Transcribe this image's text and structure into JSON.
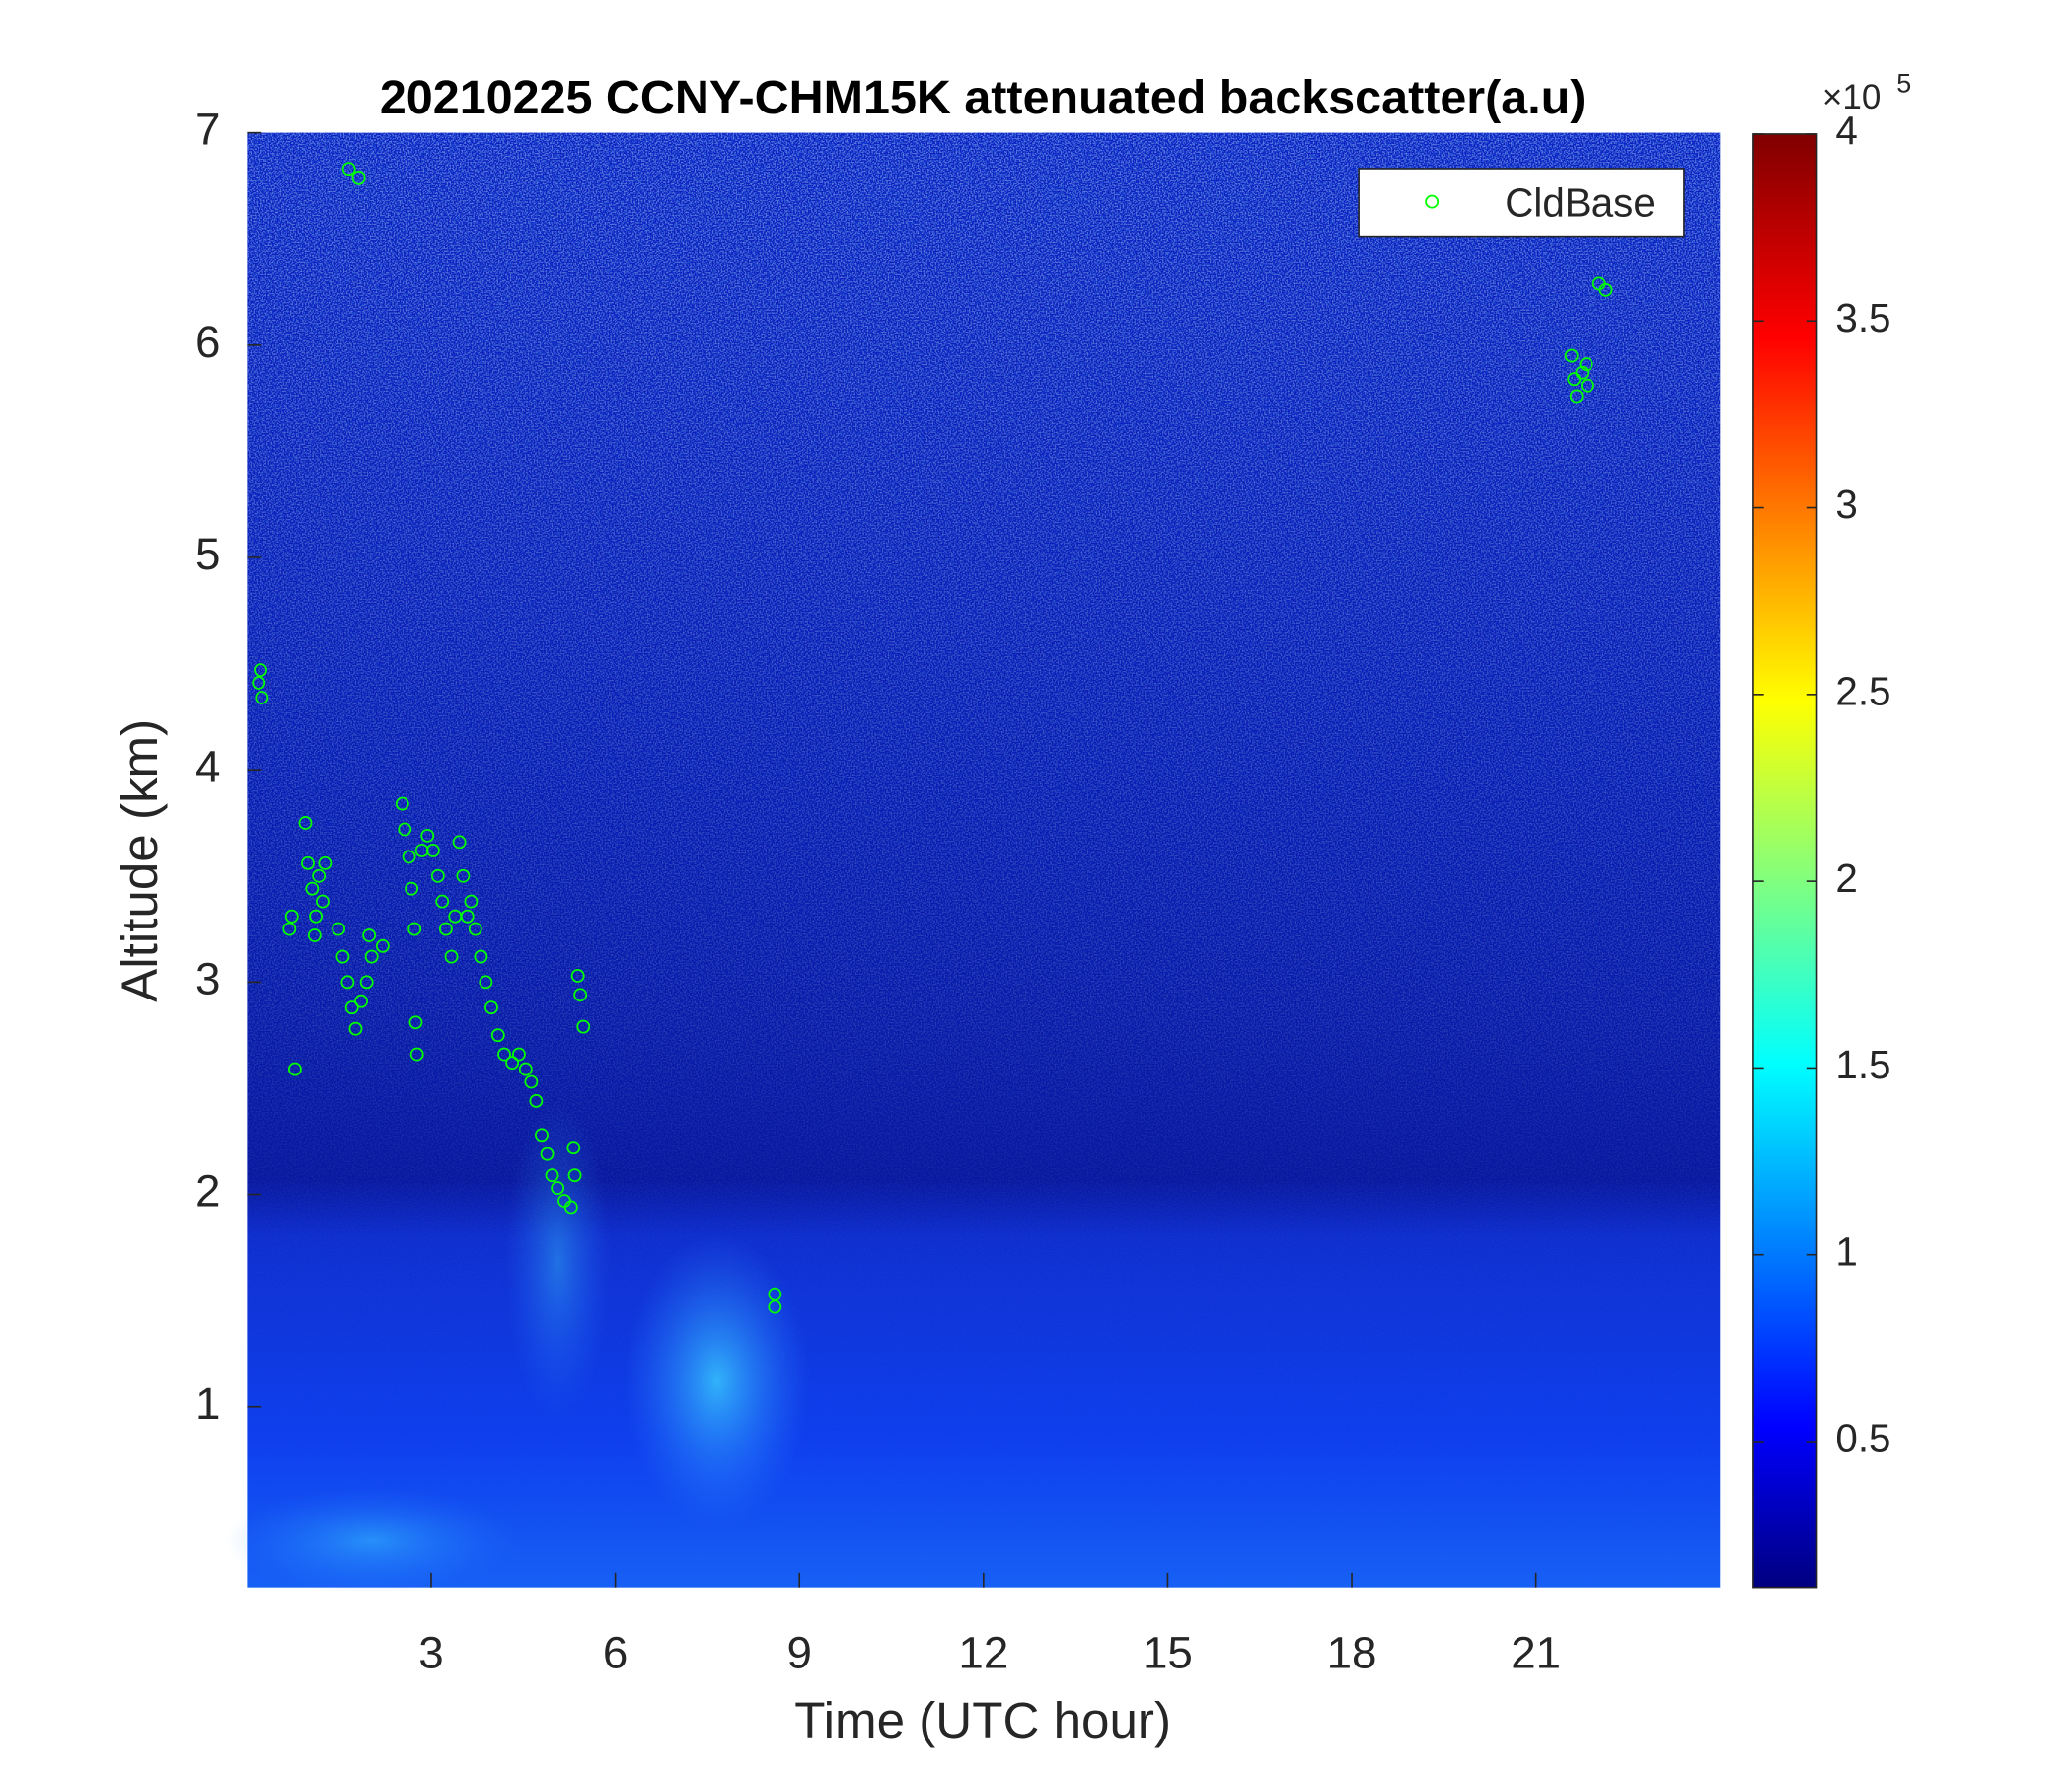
{
  "chart_data": {
    "type": "scatter",
    "title": "20210225 CCNY-CHM15K attenuated backscatter(a.u)",
    "xlabel": "Time (UTC hour)",
    "ylabel": "Altitude (km)",
    "xlim": [
      0,
      24
    ],
    "ylim": [
      0.15,
      7
    ],
    "xticks": [
      3,
      6,
      9,
      12,
      15,
      18,
      21
    ],
    "yticks": [
      1,
      2,
      3,
      4,
      5,
      6,
      7
    ],
    "legend": "upper right",
    "series": [
      {
        "name": "CldBase",
        "color": "#00ff00",
        "marker": "open-circle",
        "x": [
          0.22,
          0.24,
          0.19,
          1.66,
          1.82,
          0.69,
          0.73,
          0.78,
          0.95,
          0.99,
          1.06,
          1.12,
          1.17,
          1.23,
          1.1,
          1.27,
          1.49,
          1.56,
          1.64,
          1.71,
          1.77,
          1.86,
          1.95,
          2.03,
          1.99,
          2.21,
          2.53,
          2.57,
          2.64,
          2.68,
          2.73,
          2.75,
          2.77,
          2.85,
          2.94,
          3.03,
          3.11,
          3.18,
          3.24,
          3.33,
          3.39,
          3.46,
          3.52,
          3.59,
          3.65,
          3.72,
          3.81,
          3.89,
          3.98,
          4.09,
          4.19,
          4.32,
          4.43,
          4.54,
          4.63,
          4.71,
          4.8,
          4.89,
          4.97,
          5.06,
          5.17,
          5.28,
          5.34,
          5.32,
          5.39,
          5.43,
          5.48,
          8.6,
          8.6,
          21.58,
          21.62,
          21.66,
          21.75,
          21.84,
          21.82,
          22.03,
          22.14
        ],
        "values": [
          4.47,
          4.34,
          4.41,
          6.83,
          6.79,
          3.25,
          3.31,
          2.59,
          3.75,
          3.56,
          3.44,
          3.31,
          3.5,
          3.38,
          3.22,
          3.56,
          3.25,
          3.12,
          3.0,
          2.88,
          2.78,
          2.91,
          3.0,
          3.12,
          3.22,
          3.17,
          3.84,
          3.72,
          3.59,
          3.44,
          3.25,
          2.81,
          2.66,
          3.62,
          3.69,
          3.62,
          3.5,
          3.38,
          3.25,
          3.12,
          3.31,
          3.66,
          3.5,
          3.31,
          3.38,
          3.25,
          3.12,
          3.0,
          2.88,
          2.75,
          2.66,
          2.62,
          2.66,
          2.59,
          2.53,
          2.44,
          2.28,
          2.19,
          2.09,
          2.03,
          1.97,
          1.94,
          2.09,
          2.22,
          3.03,
          2.94,
          2.79,
          1.53,
          1.47,
          5.95,
          5.84,
          5.76,
          5.87,
          5.81,
          5.91,
          6.29,
          6.26
        ]
      }
    ],
    "colorbar": {
      "colormap": "jet",
      "lim": [
        0.11,
        4
      ],
      "ticks": [
        0.5,
        1,
        1.5,
        2,
        2.5,
        3,
        3.5,
        4
      ],
      "scale_label": "×10",
      "scale_exponent": "5"
    }
  }
}
